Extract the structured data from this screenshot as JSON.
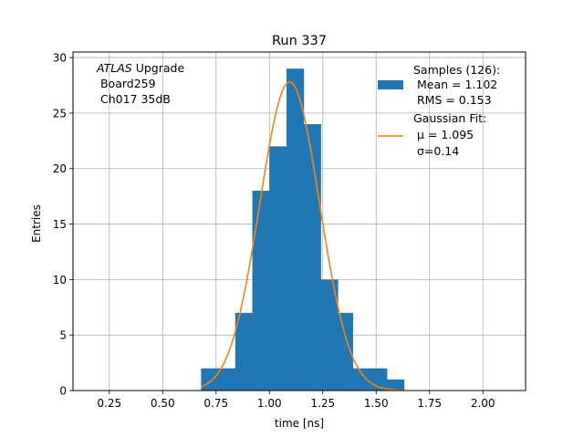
{
  "chart_data": {
    "type": "histogram",
    "title": "Run 337",
    "xlabel": "time [ns]",
    "ylabel": "Entries",
    "xlim": [
      0.08,
      2.2
    ],
    "ylim": [
      0,
      30.5
    ],
    "grid": true,
    "xticks": [
      0.25,
      0.5,
      0.75,
      1.0,
      1.25,
      1.5,
      1.75,
      2.0
    ],
    "xtick_labels": [
      "0.25",
      "0.50",
      "0.75",
      "1.00",
      "1.25",
      "1.50",
      "1.75",
      "2.00"
    ],
    "yticks": [
      0,
      5,
      10,
      15,
      20,
      25,
      30
    ],
    "ytick_labels": [
      "0",
      "5",
      "10",
      "15",
      "20",
      "25",
      "30"
    ],
    "histogram": {
      "name": "Samples",
      "color": "#1f77b4",
      "bins": [
        {
          "x0": 0.68,
          "x1": 0.84,
          "count": 2
        },
        {
          "x0": 0.84,
          "x1": 0.92,
          "count": 7
        },
        {
          "x0": 0.92,
          "x1": 1.0,
          "count": 18
        },
        {
          "x0": 1.0,
          "x1": 1.08,
          "count": 22
        },
        {
          "x0": 1.08,
          "x1": 1.16,
          "count": 29
        },
        {
          "x0": 1.16,
          "x1": 1.24,
          "count": 24
        },
        {
          "x0": 1.24,
          "x1": 1.32,
          "count": 10
        },
        {
          "x0": 1.32,
          "x1": 1.39,
          "count": 7
        },
        {
          "x0": 1.39,
          "x1": 1.55,
          "count": 2
        },
        {
          "x0": 1.55,
          "x1": 1.63,
          "count": 1
        }
      ]
    },
    "fit": {
      "name": "Gaussian Fit",
      "color": "#ff7f0e",
      "mu": 1.095,
      "sigma": 0.14,
      "amplitude": 27.8,
      "x_range": [
        0.68,
        1.63
      ]
    },
    "legend": {
      "position": "upper right",
      "entries": [
        {
          "label_lines": [
            "Samples (126):",
            " Mean = 1.102",
            " RMS = 0.153"
          ]
        },
        {
          "label_lines": [
            "Gaussian Fit:",
            " μ = 1.095",
            " σ=0.14"
          ]
        }
      ]
    },
    "annotation": {
      "italic": "ATLAS",
      "rest": " Upgrade",
      "lines": [
        " Board259",
        " Ch017 35dB"
      ]
    }
  }
}
